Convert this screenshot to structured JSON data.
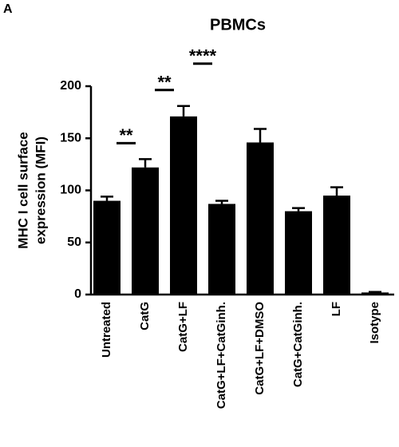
{
  "chart_data": {
    "type": "bar",
    "panel_label": "A",
    "title": "PBMCs",
    "y_label": [
      "MHC I cell surface",
      "expression (MFI)"
    ],
    "categories": [
      "Untreated",
      "CatG",
      "CatG+LF",
      "CatG+LF+CatGinh.",
      "CatG+LF+DMSO",
      "CatG+CatGinh.",
      "LF",
      "Isotype"
    ],
    "values": [
      90,
      122,
      171,
      87,
      146,
      80,
      95,
      2
    ],
    "errors": [
      4,
      8,
      10,
      3,
      13,
      3,
      8,
      0.5
    ],
    "color": "#000000",
    "ylim": [
      0,
      200
    ],
    "yticks": [
      0,
      50,
      100,
      150,
      200
    ],
    "comparisons": [
      {
        "between": [
          0,
          1
        ],
        "label": "**"
      },
      {
        "between": [
          1,
          2
        ],
        "label": "**"
      },
      {
        "between": [
          2,
          3
        ],
        "label": "****"
      }
    ]
  }
}
